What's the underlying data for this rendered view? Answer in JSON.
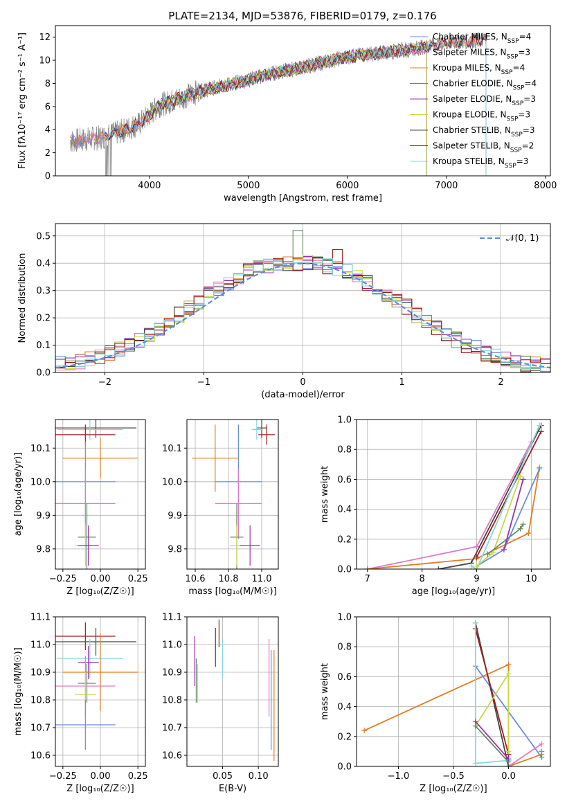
{
  "title": "PLATE=2134, MJD=53876, FIBERID=0179, z=0.176",
  "colors": {
    "Chabrier MILES": "#6a8be0",
    "Salpeter MILES": "#e377c2",
    "Kroupa MILES": "#e07b22",
    "Chabrier ELODIE": "#5f8a5f",
    "Salpeter ELODIE": "#9b30b0",
    "Kroupa ELODIE": "#c9d84a",
    "Chabrier STELIB": "#444444",
    "Salpeter STELIB": "#a01b1b",
    "Kroupa STELIB": "#80d8e0",
    "data": "#7f7f7f",
    "normal": "#5b8ee0"
  },
  "chart_data": [
    {
      "id": "spectrum",
      "type": "line",
      "xlabel": "wavelength [Angstrom, rest frame]",
      "ylabel": "Flux [fλ10⁻¹⁷ erg cm⁻² s⁻¹ A⁻¹]",
      "xlim": [
        3050,
        8050
      ],
      "ylim": [
        0,
        13
      ],
      "xticks": [
        4000,
        5000,
        6000,
        7000,
        8000
      ],
      "yticks": [
        0,
        2,
        4,
        6,
        8,
        10,
        12
      ],
      "legend_position": "right",
      "legend": [
        {
          "model": "Chabrier MILES",
          "label": "Chabrier MILES, N",
          "sub": "SSP",
          "n": "=4"
        },
        {
          "model": "Salpeter MILES",
          "label": "Salpeter MILES, N",
          "sub": "SSP",
          "n": "=3"
        },
        {
          "model": "Kroupa MILES",
          "label": "Kroupa MILES, N",
          "sub": "SSP",
          "n": "=4"
        },
        {
          "model": "Chabrier ELODIE",
          "label": "Chabrier ELODIE, N",
          "sub": "SSP",
          "n": "=4"
        },
        {
          "model": "Salpeter ELODIE",
          "label": "Salpeter ELODIE, N",
          "sub": "SSP",
          "n": "=3"
        },
        {
          "model": "Kroupa ELODIE",
          "label": "Kroupa ELODIE, N",
          "sub": "SSP",
          "n": "=3"
        },
        {
          "model": "Chabrier STELIB",
          "label": "Chabrier STELIB, N",
          "sub": "SSP",
          "n": "=3"
        },
        {
          "model": "Salpeter STELIB",
          "label": "Salpeter STELIB, N",
          "sub": "SSP",
          "n": "=2"
        },
        {
          "model": "Kroupa STELIB",
          "label": "Kroupa STELIB, N",
          "sub": "SSP",
          "n": "=3"
        }
      ],
      "model_continuum": [
        [
          3200,
          3.0
        ],
        [
          3500,
          3.3
        ],
        [
          3700,
          3.8
        ],
        [
          3900,
          4.5
        ],
        [
          4000,
          5.3
        ],
        [
          4100,
          6.1
        ],
        [
          4300,
          6.7
        ],
        [
          4500,
          7.3
        ],
        [
          4800,
          7.9
        ],
        [
          5000,
          8.3
        ],
        [
          5200,
          8.8
        ],
        [
          5500,
          9.3
        ],
        [
          5800,
          9.9
        ],
        [
          6000,
          10.3
        ],
        [
          6300,
          10.6
        ],
        [
          6600,
          10.9
        ],
        [
          6800,
          11.2
        ],
        [
          7000,
          11.5
        ],
        [
          7400,
          11.8
        ]
      ],
      "model_breaks": [
        {
          "model": "Chabrier MILES",
          "x_end": 7400
        },
        {
          "model": "Salpeter MILES",
          "x_end": 7400
        },
        {
          "model": "Kroupa MILES",
          "x_end": 7400
        },
        {
          "model": "Chabrier ELODIE",
          "x_start": 3950,
          "x_end": 6800
        },
        {
          "model": "Salpeter ELODIE",
          "x_start": 3950,
          "x_end": 6800
        },
        {
          "model": "Kroupa ELODIE",
          "x_start": 3950,
          "x_end": 6800
        },
        {
          "model": "Chabrier STELIB",
          "x_start": 3550,
          "x_end": 7400
        },
        {
          "model": "Salpeter STELIB",
          "x_start": 3550,
          "x_end": 7400
        },
        {
          "model": "Kroupa STELIB",
          "x_start": 3550,
          "x_end": 7400
        }
      ],
      "data_range": [
        3200,
        7400
      ]
    },
    {
      "id": "residuals",
      "type": "histogram",
      "xlabel": "(data-model)/error",
      "ylabel": "Normed distribution",
      "xlim": [
        -2.5,
        2.5
      ],
      "ylim": [
        0,
        0.545
      ],
      "xticks": [
        -2,
        -1,
        0,
        1,
        2
      ],
      "yticks": [
        0.0,
        0.1,
        0.2,
        0.3,
        0.4,
        0.5
      ],
      "grid": true,
      "legend_position": "top-right",
      "legend": [
        {
          "label": "𝒩(0, 1)",
          "style": "dashed"
        }
      ],
      "bin_width": 0.1,
      "bins_x0": -2.5,
      "reference_values": [
        0.03,
        0.03,
        0.04,
        0.05,
        0.06,
        0.07,
        0.09,
        0.1,
        0.12,
        0.14,
        0.16,
        0.19,
        0.21,
        0.24,
        0.26,
        0.29,
        0.31,
        0.33,
        0.35,
        0.37,
        0.38,
        0.39,
        0.4,
        0.4,
        0.4,
        0.4,
        0.4,
        0.39,
        0.38,
        0.37,
        0.35,
        0.33,
        0.31,
        0.29,
        0.26,
        0.24,
        0.21,
        0.19,
        0.16,
        0.14,
        0.12,
        0.1,
        0.09,
        0.07,
        0.06,
        0.05,
        0.04,
        0.03,
        0.03,
        0.02
      ],
      "peak_values": {
        "-0.05": 0.52,
        "0.35": 0.45
      }
    },
    {
      "id": "age-vs-z",
      "type": "errorbar",
      "xlabel": "Z [log₁₀(Z/Z☉)]",
      "ylabel": "age  [log₁₀(age/yr)]",
      "xlim": [
        -0.3,
        0.3
      ],
      "ylim": [
        9.74,
        10.185
      ],
      "xticks": [
        -0.25,
        0.0,
        0.25
      ],
      "yticks": [
        9.8,
        9.9,
        10.0,
        10.1
      ],
      "grid": true,
      "points": [
        {
          "model": "Chabrier STELIB",
          "x": -0.03,
          "xerr": 0.27,
          "y": 10.16,
          "yerr": 0.03
        },
        {
          "model": "Kroupa STELIB",
          "x": -0.07,
          "xerr": 0.22,
          "y": 10.155,
          "yerr": 0.03
        },
        {
          "model": "Salpeter STELIB",
          "x": -0.1,
          "xerr": 0.2,
          "y": 10.14,
          "yerr": 0.03
        },
        {
          "model": "Kroupa MILES",
          "x": 0.0,
          "xerr": 0.25,
          "y": 10.07,
          "yerr": 0.06
        },
        {
          "model": "Chabrier MILES",
          "x": -0.1,
          "xerr": 0.2,
          "y": 10.0,
          "yerr": 0.12
        },
        {
          "model": "Salpeter MILES",
          "x": -0.1,
          "xerr": 0.2,
          "y": 9.935,
          "yerr": 0.1
        },
        {
          "model": "Chabrier ELODIE",
          "x": -0.09,
          "xerr": 0.06,
          "y": 9.835,
          "yerr": 0.1
        },
        {
          "model": "Kroupa ELODIE",
          "x": -0.1,
          "xerr": 0.07,
          "y": 9.81,
          "yerr": 0.06
        },
        {
          "model": "Salpeter ELODIE",
          "x": -0.08,
          "xerr": 0.07,
          "y": 9.81,
          "yerr": 0.06
        }
      ]
    },
    {
      "id": "age-vs-mass",
      "type": "errorbar",
      "xlabel": "mass [log₁₀(M/M☉)]",
      "xlim": [
        10.55,
        11.1
      ],
      "ylim": [
        9.74,
        10.185
      ],
      "xticks": [
        10.6,
        10.8,
        11.0
      ],
      "yticks": [
        9.8,
        9.9,
        10.0,
        10.1
      ],
      "grid": true,
      "points": [
        {
          "model": "Chabrier STELIB",
          "x": 11.0,
          "xerr": 0.03,
          "y": 10.16,
          "yerr": 0.03
        },
        {
          "model": "Kroupa STELIB",
          "x": 10.97,
          "xerr": 0.03,
          "y": 10.155,
          "yerr": 0.03
        },
        {
          "model": "Salpeter STELIB",
          "x": 11.03,
          "xerr": 0.05,
          "y": 10.14,
          "yerr": 0.03
        },
        {
          "model": "Kroupa MILES",
          "x": 10.72,
          "xerr": 0.14,
          "y": 10.07,
          "yerr": 0.1
        },
        {
          "model": "Chabrier MILES",
          "x": 10.86,
          "xerr": 0.14,
          "y": 10.0,
          "yerr": 0.17
        },
        {
          "model": "Salpeter MILES",
          "x": 10.86,
          "xerr": 0.14,
          "y": 9.935,
          "yerr": 0.1
        },
        {
          "model": "Chabrier ELODIE",
          "x": 10.85,
          "xerr": 0.04,
          "y": 9.835,
          "yerr": 0.1
        },
        {
          "model": "Kroupa ELODIE",
          "x": 10.85,
          "xerr": 0.04,
          "y": 9.81,
          "yerr": 0.06
        },
        {
          "model": "Salpeter ELODIE",
          "x": 10.93,
          "xerr": 0.06,
          "y": 9.81,
          "yerr": 0.06
        }
      ]
    },
    {
      "id": "mass-weight-vs-age",
      "type": "line",
      "xlabel": "age  [log₁₀(age/yr)]",
      "ylabel": "mass weight",
      "xlim": [
        6.8,
        10.35
      ],
      "ylim": [
        0,
        1
      ],
      "xticks": [
        7,
        8,
        9,
        10
      ],
      "yticks": [
        0.0,
        0.2,
        0.4,
        0.6,
        0.8,
        1.0
      ],
      "grid": true,
      "series": [
        {
          "model": "Salpeter MILES",
          "x": [
            7.0,
            9.0,
            10.0
          ],
          "y": [
            0.0,
            0.15,
            0.85
          ]
        },
        {
          "model": "Kroupa MILES",
          "x": [
            7.0,
            9.0,
            9.95,
            10.15
          ],
          "y": [
            0.0,
            0.07,
            0.24,
            0.68
          ]
        },
        {
          "model": "Chabrier MILES",
          "x": [
            9.0,
            9.5,
            10.15
          ],
          "y": [
            0.02,
            0.13,
            0.67
          ]
        },
        {
          "model": "Chabrier STELIB",
          "x": [
            8.3,
            8.9,
            10.18
          ],
          "y": [
            0.0,
            0.04,
            0.96
          ]
        },
        {
          "model": "Salpeter STELIB",
          "x": [
            9.0,
            10.18
          ],
          "y": [
            0.08,
            0.92
          ]
        },
        {
          "model": "Kroupa STELIB",
          "x": [
            8.9,
            9.0,
            10.15
          ],
          "y": [
            0.02,
            0.0,
            0.96
          ]
        },
        {
          "model": "Kroupa ELODIE",
          "x": [
            9.0,
            9.3,
            9.8
          ],
          "y": [
            0.02,
            0.11,
            0.62
          ]
        },
        {
          "model": "Chabrier ELODIE",
          "x": [
            9.2,
            9.8,
            9.85
          ],
          "y": [
            0.1,
            0.27,
            0.3
          ]
        },
        {
          "model": "Salpeter ELODIE",
          "x": [
            9.5,
            9.85
          ],
          "y": [
            0.13,
            0.6
          ]
        }
      ]
    },
    {
      "id": "mass-vs-z",
      "type": "errorbar",
      "xlabel": "Z [log₁₀(Z/Z☉)]",
      "ylabel": "mass [log₁₀(M/M☉)]",
      "xlim": [
        -0.3,
        0.3
      ],
      "ylim": [
        10.56,
        11.1
      ],
      "xticks": [
        -0.25,
        0.0,
        0.25
      ],
      "yticks": [
        10.6,
        10.7,
        10.8,
        10.9,
        11.0,
        11.1
      ],
      "grid": true,
      "points": [
        {
          "model": "Chabrier STELIB",
          "x": -0.03,
          "xerr": 0.27,
          "y": 11.01,
          "yerr": 0.05
        },
        {
          "model": "Salpeter STELIB",
          "x": -0.1,
          "xerr": 0.2,
          "y": 11.03,
          "yerr": 0.05
        },
        {
          "model": "Kroupa STELIB",
          "x": -0.07,
          "xerr": 0.22,
          "y": 10.95,
          "yerr": 0.07
        },
        {
          "model": "Salpeter ELODIE",
          "x": -0.08,
          "xerr": 0.07,
          "y": 10.935,
          "yerr": 0.06
        },
        {
          "model": "Kroupa MILES",
          "x": 0.0,
          "xerr": 0.25,
          "y": 10.9,
          "yerr": 0.14
        },
        {
          "model": "Chabrier ELODIE",
          "x": -0.09,
          "xerr": 0.06,
          "y": 10.86,
          "yerr": 0.07
        },
        {
          "model": "Salpeter MILES",
          "x": -0.1,
          "xerr": 0.2,
          "y": 10.85,
          "yerr": 0.11
        },
        {
          "model": "Kroupa ELODIE",
          "x": -0.1,
          "xerr": 0.07,
          "y": 10.82,
          "yerr": 0.08
        },
        {
          "model": "Chabrier MILES",
          "x": -0.1,
          "xerr": 0.2,
          "y": 10.71,
          "yerr": 0.09
        }
      ]
    },
    {
      "id": "mass-vs-ebv",
      "type": "errorbar",
      "xlabel": "E(B-V)",
      "xlim": [
        0.0,
        0.128
      ],
      "ylim": [
        10.56,
        11.1
      ],
      "xticks": [
        0.05,
        0.1
      ],
      "yticks": [
        10.6,
        10.7,
        10.8,
        10.9,
        11.0,
        11.1
      ],
      "grid": true,
      "points": [
        {
          "model": "Salpeter ELODIE",
          "x": 0.011,
          "y": 10.94,
          "yerr": 0.09
        },
        {
          "model": "Chabrier ELODIE",
          "x": 0.013,
          "y": 10.87,
          "yerr": 0.08
        },
        {
          "model": "Kroupa ELODIE",
          "x": 0.015,
          "y": 10.86,
          "yerr": 0.07
        },
        {
          "model": "Chabrier STELIB",
          "x": 0.04,
          "y": 10.99,
          "yerr": 0.07
        },
        {
          "model": "Salpeter STELIB",
          "x": 0.045,
          "y": 11.04,
          "yerr": 0.05
        },
        {
          "model": "Kroupa STELIB",
          "x": 0.05,
          "y": 10.95,
          "yerr": 0.07
        },
        {
          "model": "Salpeter MILES",
          "x": 0.115,
          "y": 10.88,
          "yerr": 0.14
        },
        {
          "model": "Chabrier MILES",
          "x": 0.118,
          "y": 10.8,
          "yerr": 0.18
        },
        {
          "model": "Kroupa MILES",
          "x": 0.122,
          "y": 10.78,
          "yerr": 0.2
        }
      ]
    },
    {
      "id": "mass-weight-vs-z",
      "type": "line",
      "xlabel": "Z [log₁₀(Z/Z☉)]",
      "ylabel": "mass weight",
      "xlim": [
        -1.38,
        0.38
      ],
      "ylim": [
        0,
        1
      ],
      "xticks": [
        -1.0,
        -0.5,
        0.0
      ],
      "yticks": [
        0.0,
        0.2,
        0.4,
        0.6,
        0.8,
        1.0
      ],
      "grid": true,
      "series": [
        {
          "model": "Kroupa MILES",
          "x": [
            -1.31,
            0.0,
            0.0,
            0.3
          ],
          "y": [
            0.24,
            0.68,
            0.0,
            0.08
          ]
        },
        {
          "model": "Chabrier MILES",
          "x": [
            -0.3,
            0.3,
            0.3
          ],
          "y": [
            0.67,
            0.06,
            0.1
          ]
        },
        {
          "model": "Salpeter MILES",
          "x": [
            0.0,
            0.3
          ],
          "y": [
            0.0,
            0.15
          ]
        },
        {
          "model": "Chabrier STELIB",
          "x": [
            -0.3,
            0.0
          ],
          "y": [
            0.96,
            0.0
          ]
        },
        {
          "model": "Salpeter STELIB",
          "x": [
            -0.3,
            0.0
          ],
          "y": [
            0.92,
            0.08
          ]
        },
        {
          "model": "Kroupa STELIB",
          "x": [
            -0.3,
            -0.3,
            0.0
          ],
          "y": [
            0.96,
            0.02,
            0.04
          ]
        },
        {
          "model": "Kroupa ELODIE",
          "x": [
            -0.3,
            0.0,
            0.0
          ],
          "y": [
            0.27,
            0.62,
            0.1
          ]
        },
        {
          "model": "Chabrier ELODIE",
          "x": [
            -0.3,
            0.0
          ],
          "y": [
            0.27,
            0.03
          ]
        },
        {
          "model": "Salpeter ELODIE",
          "x": [
            -0.3,
            0.0
          ],
          "y": [
            0.3,
            0.05
          ]
        }
      ]
    }
  ]
}
